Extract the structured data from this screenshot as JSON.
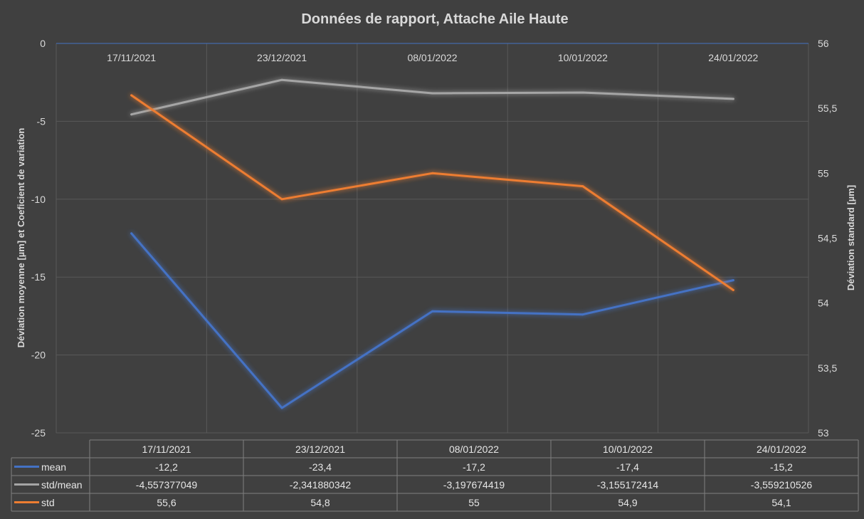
{
  "chart_data": {
    "type": "line",
    "title": "Données de rapport, Attache Aile Haute",
    "categories": [
      "17/11/2021",
      "23/12/2021",
      "08/01/2022",
      "10/01/2022",
      "24/01/2022"
    ],
    "y_left": {
      "label": "Déviation moyenne [µm] et Coeficient de variation",
      "range": [
        -25,
        0
      ],
      "ticks": [
        0,
        -5,
        -10,
        -15,
        -20,
        -25
      ],
      "tick_labels": [
        "0",
        "-5",
        "-10",
        "-15",
        "-20",
        "-25"
      ]
    },
    "y_right": {
      "label": "Déviation standard [µm]",
      "range": [
        53,
        56
      ],
      "ticks": [
        56,
        55.5,
        55,
        54.5,
        54,
        53.5,
        53
      ],
      "tick_labels": [
        "56",
        "55,5",
        "55",
        "54,5",
        "54",
        "53,5",
        "53"
      ]
    },
    "grid": true,
    "legend": "data-table",
    "series": [
      {
        "name": "mean",
        "axis": "left",
        "color": "#4472c4",
        "values": [
          -12.2,
          -23.4,
          -17.2,
          -17.4,
          -15.2
        ],
        "table_values": [
          "-12,2",
          "-23,4",
          "-17,2",
          "-17,4",
          "-15,2"
        ]
      },
      {
        "name": "std/mean",
        "axis": "left",
        "color": "#a5a5a5",
        "values": [
          -4.557377049,
          -2.341880342,
          -3.197674419,
          -3.155172414,
          -3.559210526
        ],
        "table_values": [
          "-4,557377049",
          "-2,341880342",
          "-3,197674419",
          "-3,155172414",
          "-3,559210526"
        ]
      },
      {
        "name": "std",
        "axis": "right",
        "color": "#ed7d31",
        "values": [
          55.6,
          54.8,
          55,
          54.9,
          54.1
        ],
        "table_values": [
          "55,6",
          "54,8",
          "55",
          "54,9",
          "54,1"
        ]
      }
    ]
  }
}
